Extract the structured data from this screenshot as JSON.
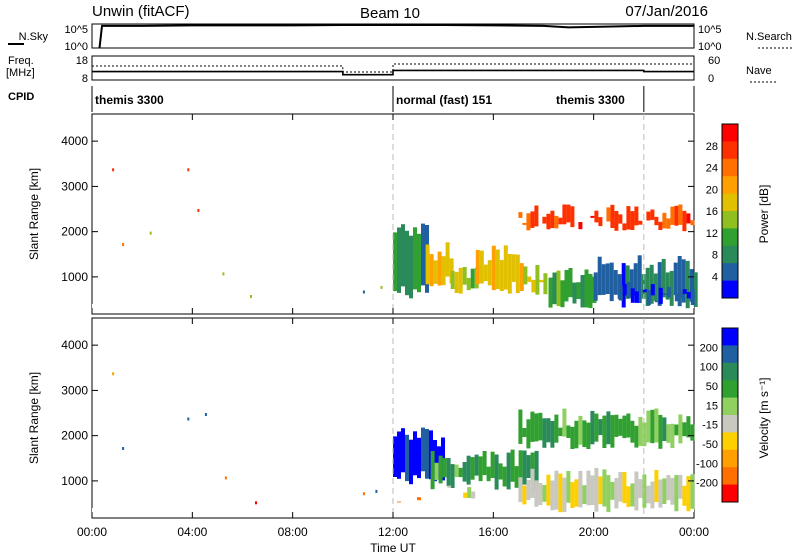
{
  "header": {
    "station": "Unwin (fitACF)",
    "beam": "Beam 10",
    "date": "07/Jan/2016"
  },
  "chart_data": [
    {
      "type": "line",
      "panel": "noise",
      "left_label": "N.Sky",
      "right_label": "N.Search",
      "left_ticks": [
        "10^5",
        "10^0"
      ],
      "right_ticks": [
        "10^5",
        "10^0"
      ],
      "series": [
        {
          "name": "N.Sky",
          "x": [
            0.3,
            0.4,
            2,
            4,
            6,
            8,
            10,
            12,
            14,
            16,
            18,
            19,
            20,
            22,
            24
          ],
          "y": [
            0,
            4.6,
            4.6,
            4.7,
            4.7,
            4.7,
            4.8,
            4.8,
            4.8,
            4.7,
            4.6,
            4.3,
            4.4,
            4.6,
            4.6
          ]
        }
      ]
    },
    {
      "type": "line",
      "panel": "frequency",
      "left_label": "Freq. [MHz]",
      "right_label": "Nave",
      "left_ticks": [
        "18",
        "8"
      ],
      "right_ticks": [
        "60",
        "0"
      ],
      "series": [
        {
          "name": "Freq.",
          "x": [
            0,
            10.0,
            10.0,
            12.0,
            12.0,
            22.0,
            22.0,
            24
          ],
          "y": [
            11.5,
            11.5,
            10.2,
            10.2,
            12.0,
            12.0,
            11.5,
            11.5
          ]
        },
        {
          "name": "Nave",
          "x": [
            0,
            10.0,
            10.0,
            12.0,
            12.0,
            24
          ],
          "y": [
            35,
            35,
            20,
            20,
            40,
            40
          ]
        }
      ]
    },
    {
      "type": "table",
      "panel": "cpid",
      "label": "CPID",
      "segments": [
        {
          "start": 0,
          "end": 12,
          "text": "themis 3300"
        },
        {
          "start": 12,
          "end": 22,
          "text": "normal (fast) 151"
        },
        {
          "start": 22,
          "end": 24,
          "text": ""
        }
      ],
      "extra_label": {
        "at": 18.5,
        "text": "themis 3300"
      }
    },
    {
      "type": "heatmap",
      "panel": "power",
      "ylabel": "Slant Range [km]",
      "yticks": [
        "4000",
        "3000",
        "2000",
        "1000"
      ],
      "ylim": [
        180,
        4600
      ],
      "xlim": [
        0,
        24
      ],
      "colorbar": {
        "label": "Power [dB]",
        "ticks": [
          "28",
          "24",
          "20",
          "16",
          "12",
          "8",
          "4"
        ],
        "colors": [
          "#ff0000",
          "#ff3000",
          "#ff7000",
          "#ffa000",
          "#e0c000",
          "#90c020",
          "#30a030",
          "#2a8a5a",
          "#2060a0",
          "#0000ff"
        ]
      },
      "blocks": [
        {
          "x0": 12.0,
          "x1": 13.3,
          "y0": 500,
          "y1": 2200,
          "level": 0.75
        },
        {
          "x0": 13.3,
          "x1": 14.3,
          "y0": 700,
          "y1": 1800,
          "level": 0.45
        },
        {
          "x0": 14.3,
          "x1": 15.3,
          "y0": 600,
          "y1": 1400,
          "level": 0.55
        },
        {
          "x0": 15.3,
          "x1": 17.2,
          "y0": 600,
          "y1": 1700,
          "level": 0.4
        },
        {
          "x0": 17.2,
          "x1": 18.0,
          "y0": 600,
          "y1": 1300,
          "level": 0.55
        },
        {
          "x0": 18.2,
          "x1": 20.0,
          "y0": 300,
          "y1": 1200,
          "level": 0.7
        },
        {
          "x0": 20.0,
          "x1": 24.0,
          "y0": 300,
          "y1": 1500,
          "level": 0.85
        },
        {
          "x0": 21.0,
          "x1": 24.0,
          "y0": 350,
          "y1": 900,
          "level": 0.95
        },
        {
          "x0": 17.0,
          "x1": 24.0,
          "y0": 2000,
          "y1": 2600,
          "level": 0.15
        }
      ],
      "dots": [
        {
          "x": 0.8,
          "y": 3400,
          "level": 0.1
        },
        {
          "x": 1.2,
          "y": 1750,
          "level": 0.2
        },
        {
          "x": 2.3,
          "y": 2000,
          "level": 0.6
        },
        {
          "x": 3.8,
          "y": 3400,
          "level": 0.1
        },
        {
          "x": 4.2,
          "y": 2500,
          "level": 0.15
        },
        {
          "x": 5.2,
          "y": 1100,
          "level": 0.5
        },
        {
          "x": 6.3,
          "y": 600,
          "level": 0.6
        },
        {
          "x": 10.8,
          "y": 700,
          "level": 0.9
        },
        {
          "x": 11.5,
          "y": 800,
          "level": 0.5
        }
      ]
    },
    {
      "type": "heatmap",
      "panel": "velocity",
      "ylabel": "Slant Range [km]",
      "yticks": [
        "4000",
        "3000",
        "2000",
        "1000"
      ],
      "ylim": [
        180,
        4600
      ],
      "xlim": [
        0,
        24
      ],
      "xticks": [
        "00:00",
        "04:00",
        "08:00",
        "12:00",
        "16:00",
        "20:00",
        "00:00"
      ],
      "xlabel": "Time UT",
      "colorbar": {
        "label": "Velocity [m s⁻¹]",
        "ticks": [
          "200",
          "100",
          "50",
          "15",
          "-15",
          "-50",
          "-100",
          "-200"
        ],
        "colors": [
          "#0000ff",
          "#2060a0",
          "#2a8a5a",
          "#30a030",
          "#90d060",
          "#c8c8c0",
          "#ffd000",
          "#ffa000",
          "#ff7000",
          "#ff0000"
        ]
      },
      "blocks": [
        {
          "x0": 12.0,
          "x1": 14.0,
          "y0": 900,
          "y1": 2200,
          "level": 0.0
        },
        {
          "x0": 12.0,
          "x1": 13.0,
          "y0": 500,
          "y1": 700,
          "level": 0.85
        },
        {
          "x0": 13.5,
          "x1": 17.8,
          "y0": 800,
          "y1": 1700,
          "level": 0.3
        },
        {
          "x0": 14.0,
          "x1": 16.5,
          "y0": 600,
          "y1": 900,
          "level": 0.55
        },
        {
          "x0": 17.0,
          "x1": 24.0,
          "y0": 300,
          "y1": 1300,
          "level": 0.55
        },
        {
          "x0": 17.0,
          "x1": 24.0,
          "y0": 1700,
          "y1": 2600,
          "level": 0.35
        }
      ],
      "dots": [
        {
          "x": 0.8,
          "y": 3400,
          "level": 0.8
        },
        {
          "x": 1.2,
          "y": 1750,
          "level": 0.1
        },
        {
          "x": 3.8,
          "y": 2400,
          "level": 0.1
        },
        {
          "x": 4.5,
          "y": 2500,
          "level": 0.1
        },
        {
          "x": 5.3,
          "y": 1100,
          "level": 0.9
        },
        {
          "x": 6.5,
          "y": 550,
          "level": 1.0
        },
        {
          "x": 10.8,
          "y": 750,
          "level": 0.9
        },
        {
          "x": 11.3,
          "y": 800,
          "level": 0.1
        }
      ]
    }
  ]
}
